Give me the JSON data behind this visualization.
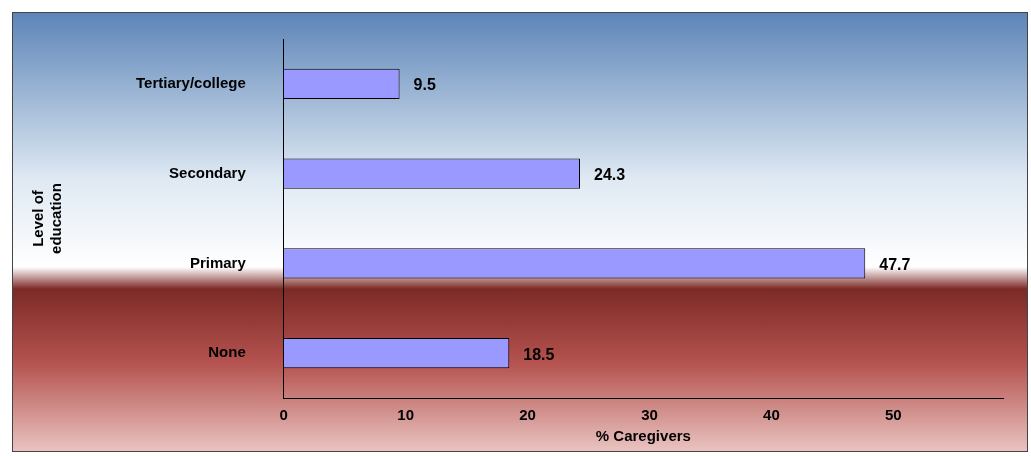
{
  "chart_data": {
    "type": "bar",
    "orientation": "horizontal",
    "categories": [
      "Tertiary/college",
      "Secondary",
      "Primary",
      "None"
    ],
    "values": [
      9.5,
      24.3,
      47.7,
      18.5
    ],
    "color": "#9999ff",
    "data_labels": true,
    "xlim": [
      0,
      59
    ],
    "xticks": [
      0,
      10,
      20,
      30,
      40,
      50
    ],
    "xlabel": "% Caregivers",
    "ylabel": "Level of education",
    "grid": false,
    "legend": false
  }
}
